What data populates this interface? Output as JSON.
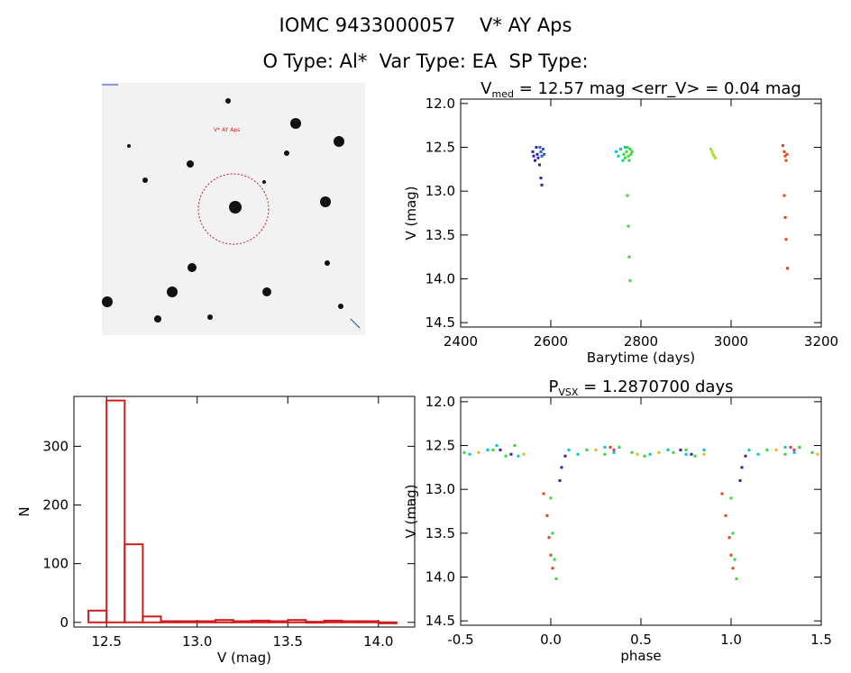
{
  "header": {
    "line1": "IOMC 9433000057    V* AY Aps",
    "line2": "O Type: Al*  Var Type: EA  SP Type:"
  },
  "image_stamp": {
    "description_marker": "target-circle",
    "label_top": "V* AY Aps"
  },
  "chart_data": [
    {
      "id": "lightcurve",
      "type": "scatter",
      "title_main": "V",
      "title_sub": "med",
      "title_rest": " = 12.57 mag <err_V> = 0.04 mag",
      "xlabel": "Barytime (days)",
      "ylabel": "V (mag)",
      "xlim": [
        2400,
        3200
      ],
      "ylim": [
        14.55,
        11.95
      ],
      "xticks": [
        2400,
        2600,
        2800,
        3000,
        3200
      ],
      "yticks": [
        12.0,
        12.5,
        13.0,
        13.5,
        14.0,
        14.5
      ],
      "series": [
        {
          "color": "#3a1fa8",
          "x": [
            2560,
            2562,
            2565,
            2568,
            2570,
            2572,
            2575,
            2578,
            2580
          ],
          "y": [
            12.55,
            12.6,
            12.65,
            12.5,
            12.58,
            12.62,
            12.7,
            12.85,
            12.93
          ]
        },
        {
          "color": "#1f5cd6",
          "x": [
            2576,
            2578,
            2580,
            2583,
            2585
          ],
          "y": [
            12.5,
            12.55,
            12.6,
            12.52,
            12.58
          ]
        },
        {
          "color": "#00c8c8",
          "x": [
            2745,
            2750,
            2755,
            2760,
            2765
          ],
          "y": [
            12.55,
            12.6,
            12.52,
            12.65,
            12.5
          ]
        },
        {
          "color": "#39d63a",
          "x": [
            2762,
            2765,
            2768,
            2770,
            2772,
            2774,
            2776,
            2778,
            2780,
            2770,
            2772,
            2774,
            2776
          ],
          "y": [
            12.58,
            12.62,
            12.55,
            12.5,
            12.6,
            12.65,
            12.52,
            12.58,
            12.55,
            13.05,
            13.4,
            13.75,
            14.02
          ]
        },
        {
          "color": "#a5e02a",
          "x": [
            2955,
            2958,
            2960,
            2962,
            2965
          ],
          "y": [
            12.52,
            12.55,
            12.58,
            12.6,
            12.62
          ]
        },
        {
          "color": "#e0461a",
          "x": [
            3115,
            3118,
            3120,
            3122,
            3124,
            3118,
            3120,
            3122,
            3125
          ],
          "y": [
            12.48,
            12.55,
            12.6,
            12.65,
            12.58,
            13.05,
            13.3,
            13.55,
            13.88
          ]
        }
      ]
    },
    {
      "id": "histogram",
      "type": "bar",
      "xlabel": "V (mag)",
      "ylabel": "N",
      "xlim": [
        12.32,
        14.2
      ],
      "ylim": [
        -8,
        385
      ],
      "xticks": [
        12.5,
        13.0,
        13.5,
        14.0
      ],
      "yticks": [
        0,
        100,
        200,
        300
      ],
      "bin_left": [
        12.4,
        12.5,
        12.6,
        12.7,
        12.8,
        12.9,
        13.0,
        13.1,
        13.2,
        13.3,
        13.4,
        13.5,
        13.6,
        13.7,
        13.8,
        13.9,
        14.0
      ],
      "bin_width": 0.1,
      "values": [
        20,
        378,
        133,
        10,
        2,
        2,
        2,
        4,
        2,
        3,
        2,
        4,
        1,
        3,
        2,
        2,
        0
      ],
      "color": "#d01c1c"
    },
    {
      "id": "phased",
      "type": "scatter",
      "title_main": "P",
      "title_sub": "VSX",
      "title_rest": " = 1.2870700 days",
      "xlabel": "phase",
      "ylabel": "V (mag)",
      "xlim": [
        -0.5,
        1.5
      ],
      "ylim": [
        14.55,
        11.95
      ],
      "xticks": [
        -0.5,
        0.0,
        0.5,
        1.0,
        1.5
      ],
      "yticks": [
        12.0,
        12.5,
        13.0,
        13.5,
        14.0,
        14.5
      ],
      "series": [
        {
          "color": "#3a1fa8",
          "x": [
            -0.28,
            -0.22,
            0.05,
            0.06,
            0.08,
            0.72,
            0.78,
            1.05,
            1.06,
            1.08
          ],
          "y": [
            12.55,
            12.6,
            12.9,
            12.75,
            12.62,
            12.55,
            12.6,
            12.9,
            12.75,
            12.62
          ]
        },
        {
          "color": "#00c8c8",
          "x": [
            -0.45,
            -0.35,
            -0.3,
            -0.18,
            0.1,
            0.15,
            0.3,
            0.35,
            0.55,
            0.65,
            0.75,
            0.85,
            1.1,
            1.15,
            1.3,
            1.35
          ],
          "y": [
            12.6,
            12.55,
            12.5,
            12.62,
            12.55,
            12.6,
            12.52,
            12.58,
            12.6,
            12.55,
            12.6,
            12.55,
            12.55,
            12.6,
            12.52,
            12.58
          ]
        },
        {
          "color": "#39d63a",
          "x": [
            -0.48,
            -0.32,
            -0.25,
            -0.2,
            0.0,
            0.01,
            0.02,
            0.03,
            0.2,
            0.3,
            0.38,
            0.45,
            0.52,
            0.68,
            0.75,
            0.8,
            1.0,
            1.01,
            1.02,
            1.03,
            1.2,
            1.3,
            1.38,
            1.45
          ],
          "y": [
            12.58,
            12.55,
            12.62,
            12.5,
            13.1,
            13.5,
            13.8,
            14.02,
            12.55,
            12.6,
            12.52,
            12.58,
            12.62,
            12.58,
            12.55,
            12.62,
            13.1,
            13.5,
            13.8,
            14.02,
            12.55,
            12.6,
            12.52,
            12.58
          ]
        },
        {
          "color": "#f0b020",
          "x": [
            -0.4,
            -0.15,
            0.25,
            0.48,
            0.6,
            0.85,
            1.25,
            1.48
          ],
          "y": [
            12.58,
            12.6,
            12.55,
            12.6,
            12.58,
            12.6,
            12.55,
            12.6
          ]
        },
        {
          "color": "#e0461a",
          "x": [
            -0.04,
            -0.02,
            -0.01,
            0.0,
            0.01,
            0.33,
            0.95,
            0.97,
            0.99,
            1.0,
            1.01,
            1.33
          ],
          "y": [
            13.05,
            13.3,
            13.55,
            13.75,
            13.9,
            12.52,
            13.05,
            13.3,
            13.55,
            13.75,
            13.9,
            12.52
          ]
        },
        {
          "color": "#d63a8a",
          "x": [
            0.35,
            1.35
          ],
          "y": [
            12.55,
            12.55
          ]
        }
      ]
    }
  ]
}
